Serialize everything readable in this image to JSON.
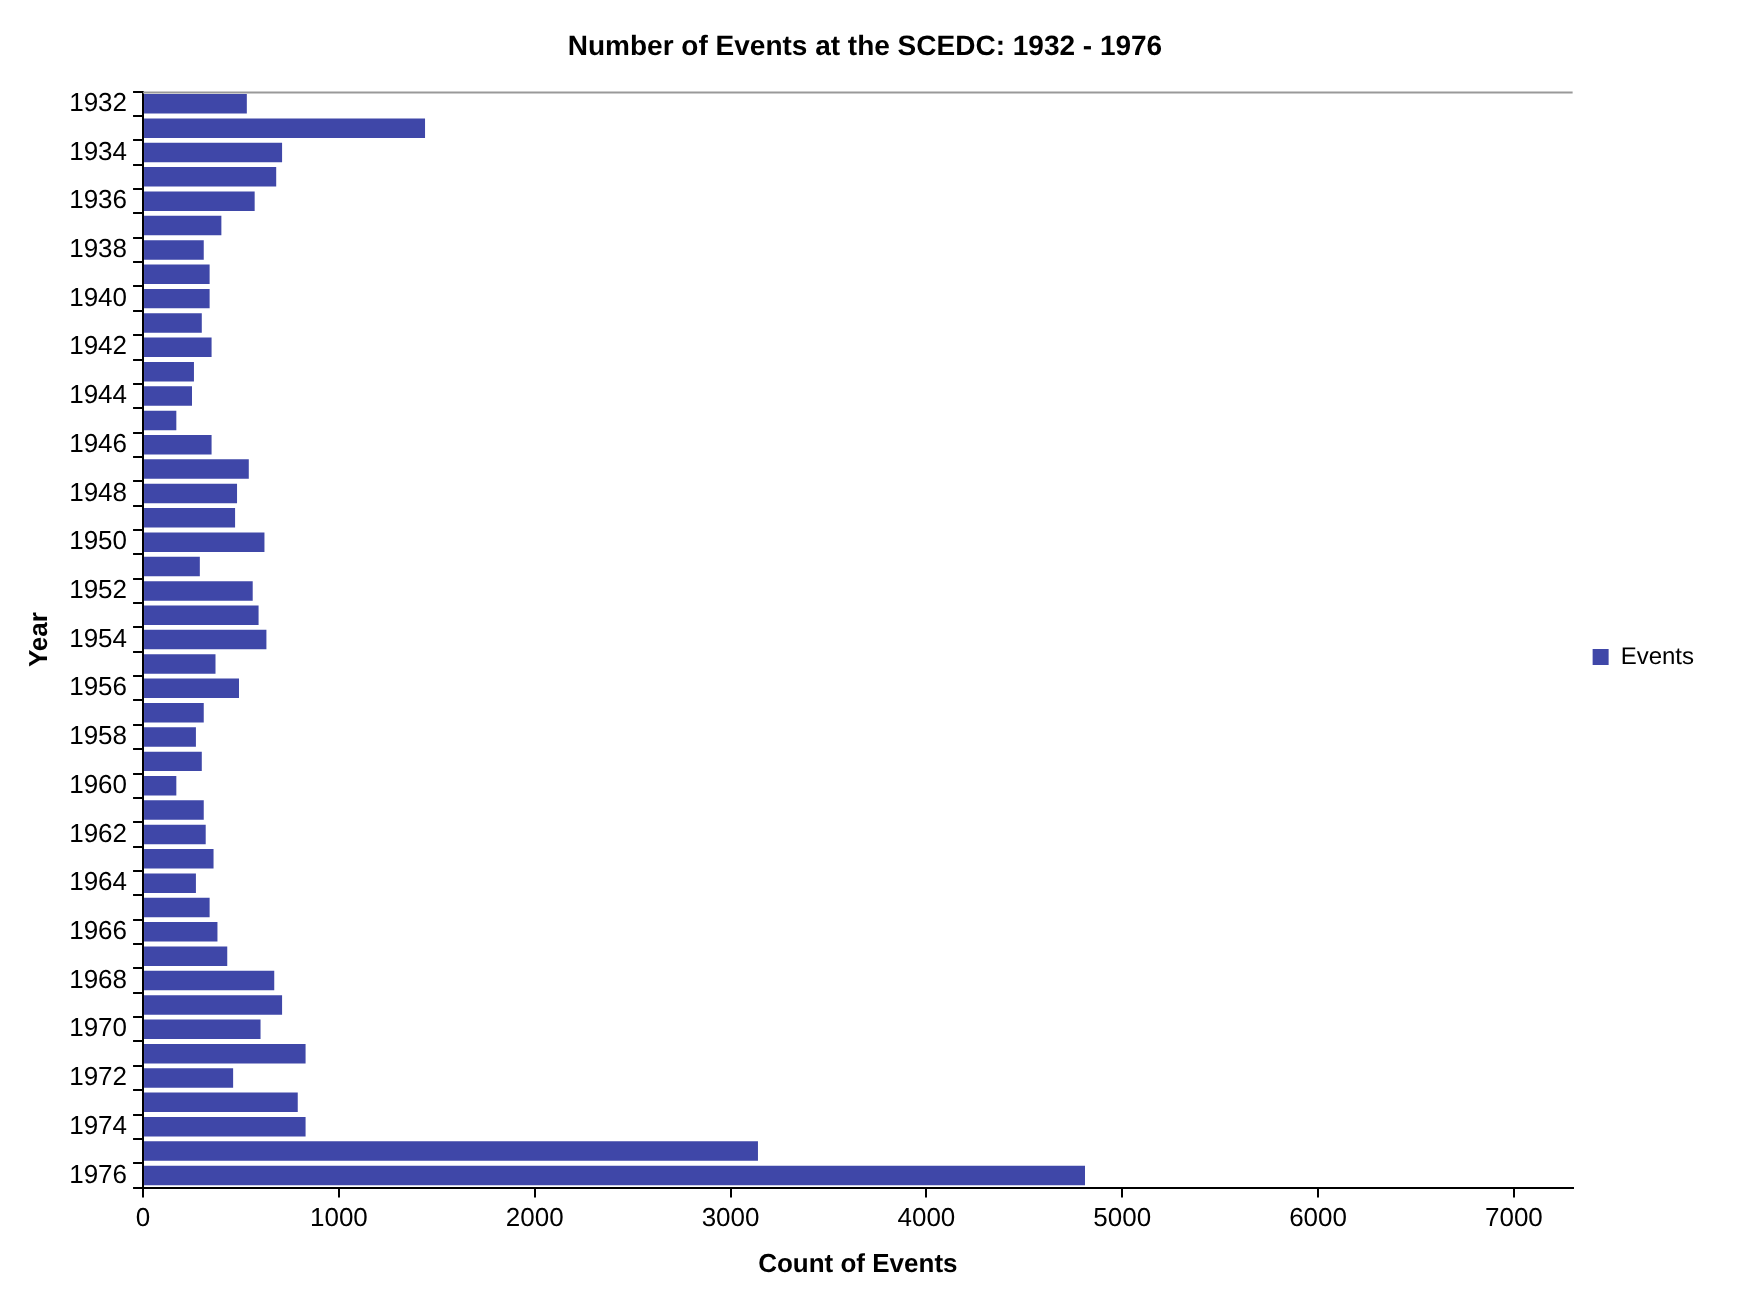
{
  "chart_data": {
    "type": "bar",
    "orientation": "horizontal",
    "title": "Number of Events at the SCEDC: 1932 - 1976",
    "xlabel": "Count of Events",
    "ylabel": "Year",
    "categories": [
      "1932",
      null,
      "1934",
      null,
      "1936",
      null,
      "1938",
      null,
      "1940",
      null,
      "1942",
      null,
      "1944",
      null,
      "1946",
      null,
      "1948",
      null,
      "1950",
      null,
      "1952",
      null,
      "1954",
      null,
      "1956",
      null,
      "1958",
      null,
      "1960",
      null,
      "1962",
      null,
      "1964",
      null,
      "1966",
      null,
      "1968",
      null,
      "1970",
      null,
      "1972",
      null,
      "1974",
      null,
      "1976"
    ],
    "series": [
      {
        "name": "Events",
        "color": "#3f47a8",
        "values": [
          530,
          1440,
          710,
          680,
          570,
          400,
          310,
          340,
          340,
          300,
          350,
          260,
          250,
          170,
          350,
          540,
          480,
          470,
          620,
          290,
          560,
          590,
          630,
          370,
          490,
          310,
          270,
          300,
          170,
          310,
          320,
          360,
          270,
          340,
          380,
          430,
          670,
          710,
          600,
          830,
          460,
          790,
          830,
          3140,
          4810
        ]
      }
    ],
    "xlim": [
      0,
      7300
    ],
    "xticks": [
      0,
      1000,
      2000,
      3000,
      4000,
      5000,
      6000,
      7000
    ],
    "grid": false,
    "legend": "right"
  }
}
